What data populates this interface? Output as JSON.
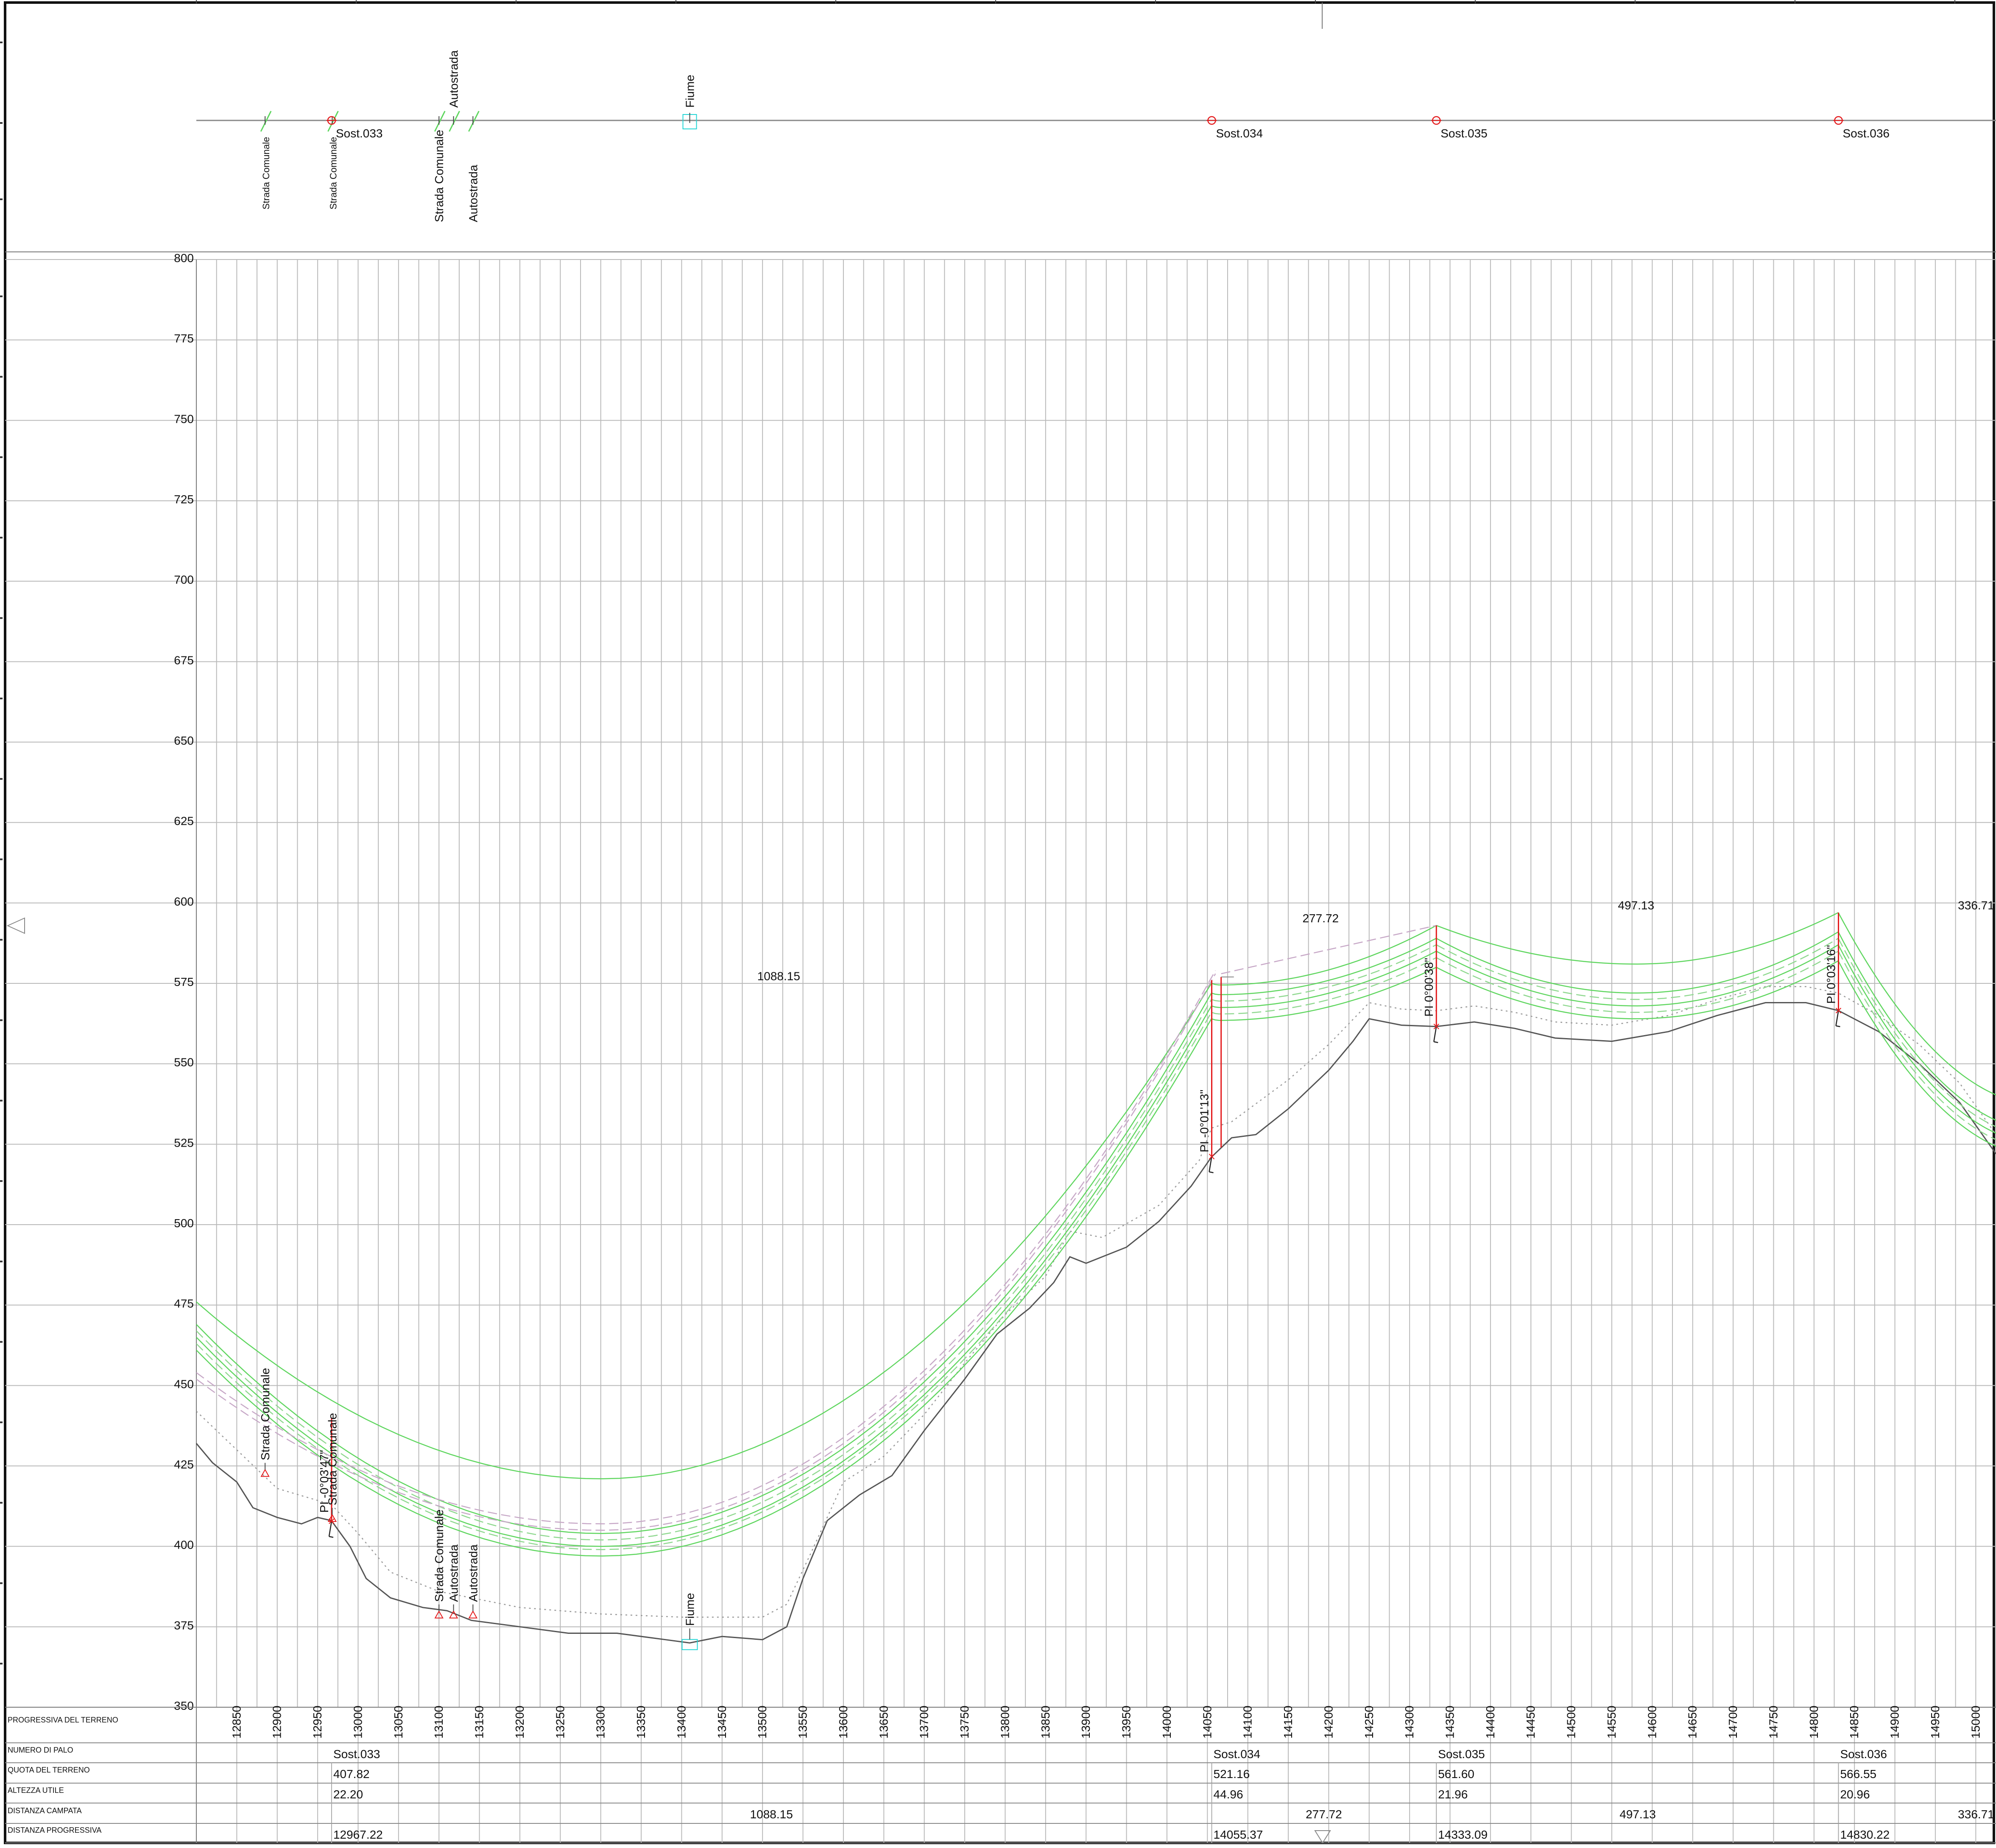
{
  "palette": {
    "grid": "#b9b9b9",
    "frame": "#111111",
    "terrain": "#555555",
    "terrain_offset": "#9a9a9a",
    "conductor": "#5fd65f",
    "conductor_dashed": "#8fd88f",
    "groundwire": "#c7a8c7",
    "pole": "#e41a1c",
    "river": "#22d5d5"
  },
  "plan_view": {
    "crossings": [
      {
        "name": "Strada Comunale",
        "x": 12885
      },
      {
        "name": "Strada Comunale",
        "x": 12968
      },
      {
        "name": "Strada Comunale",
        "x": 13100
      },
      {
        "name": "Autostrada",
        "x": 13118
      },
      {
        "name": "Autostrada",
        "x": 13142
      }
    ],
    "river": {
      "name": "Fiume",
      "x": 13410
    },
    "supports": [
      {
        "name": "Sost.033",
        "x": 12967.22
      },
      {
        "name": "Sost.034",
        "x": 14055.37
      },
      {
        "name": "Sost.035",
        "x": 14333.09
      },
      {
        "name": "Sost.036",
        "x": 14830.22
      }
    ]
  },
  "chart_data": {
    "type": "line",
    "title": "",
    "xlabel": "",
    "ylabel": "",
    "xlim": [
      12800,
      15025
    ],
    "ylim": [
      350,
      800
    ],
    "y_ticks": [
      350,
      375,
      400,
      425,
      450,
      475,
      500,
      525,
      550,
      575,
      600,
      625,
      650,
      675,
      700,
      725,
      750,
      775,
      800
    ],
    "x_ticks": [
      12850,
      12900,
      12950,
      13000,
      13050,
      13100,
      13150,
      13200,
      13250,
      13300,
      13350,
      13400,
      13450,
      13500,
      13550,
      13600,
      13650,
      13700,
      13750,
      13800,
      13850,
      13900,
      13950,
      14000,
      14050,
      14100,
      14150,
      14200,
      14250,
      14300,
      14350,
      14400,
      14450,
      14500,
      14550,
      14600,
      14650,
      14700,
      14750,
      14800,
      14850,
      14900,
      14950,
      15000
    ],
    "terrain": [
      [
        12800,
        432
      ],
      [
        12820,
        426
      ],
      [
        12850,
        420
      ],
      [
        12870,
        412
      ],
      [
        12900,
        409
      ],
      [
        12930,
        407
      ],
      [
        12950,
        409
      ],
      [
        12967,
        408
      ],
      [
        12990,
        400
      ],
      [
        13010,
        390
      ],
      [
        13040,
        384
      ],
      [
        13080,
        381
      ],
      [
        13110,
        380
      ],
      [
        13140,
        377
      ],
      [
        13200,
        375
      ],
      [
        13260,
        373
      ],
      [
        13320,
        373
      ],
      [
        13380,
        371
      ],
      [
        13410,
        370
      ],
      [
        13450,
        372
      ],
      [
        13500,
        371
      ],
      [
        13530,
        375
      ],
      [
        13550,
        390
      ],
      [
        13580,
        408
      ],
      [
        13620,
        416
      ],
      [
        13660,
        422
      ],
      [
        13700,
        436
      ],
      [
        13750,
        452
      ],
      [
        13790,
        466
      ],
      [
        13830,
        474
      ],
      [
        13860,
        482
      ],
      [
        13880,
        490
      ],
      [
        13900,
        488
      ],
      [
        13950,
        493
      ],
      [
        13990,
        501
      ],
      [
        14030,
        512
      ],
      [
        14055,
        521
      ],
      [
        14080,
        527
      ],
      [
        14110,
        528
      ],
      [
        14150,
        536
      ],
      [
        14200,
        548
      ],
      [
        14230,
        557
      ],
      [
        14250,
        564
      ],
      [
        14290,
        562
      ],
      [
        14333,
        561.6
      ],
      [
        14380,
        563
      ],
      [
        14430,
        561
      ],
      [
        14480,
        558
      ],
      [
        14550,
        557
      ],
      [
        14620,
        560
      ],
      [
        14680,
        565
      ],
      [
        14740,
        569
      ],
      [
        14790,
        569
      ],
      [
        14830,
        566.55
      ],
      [
        14880,
        560
      ],
      [
        14930,
        550
      ],
      [
        14980,
        538
      ],
      [
        15025,
        522
      ]
    ],
    "terrain_offset": [
      [
        12800,
        442
      ],
      [
        12850,
        430
      ],
      [
        12900,
        418
      ],
      [
        12967,
        413
      ],
      [
        13000,
        404
      ],
      [
        13040,
        392
      ],
      [
        13100,
        386
      ],
      [
        13200,
        381
      ],
      [
        13300,
        379
      ],
      [
        13400,
        378
      ],
      [
        13500,
        378
      ],
      [
        13530,
        382
      ],
      [
        13560,
        398
      ],
      [
        13600,
        420
      ],
      [
        13650,
        428
      ],
      [
        13700,
        441
      ],
      [
        13750,
        457
      ],
      [
        13800,
        472
      ],
      [
        13850,
        484
      ],
      [
        13880,
        498
      ],
      [
        13920,
        496
      ],
      [
        13990,
        506
      ],
      [
        14040,
        520
      ],
      [
        14055,
        530
      ],
      [
        14080,
        532
      ],
      [
        14150,
        545
      ],
      [
        14200,
        556
      ],
      [
        14250,
        569
      ],
      [
        14290,
        567
      ],
      [
        14333,
        566.5
      ],
      [
        14380,
        568
      ],
      [
        14430,
        566
      ],
      [
        14480,
        563
      ],
      [
        14550,
        562
      ],
      [
        14620,
        565
      ],
      [
        14680,
        570
      ],
      [
        14740,
        574
      ],
      [
        14790,
        574
      ],
      [
        14830,
        572
      ],
      [
        14880,
        565
      ],
      [
        14930,
        556
      ],
      [
        14980,
        544
      ],
      [
        15025,
        528
      ]
    ],
    "spans": [
      {
        "from": 12967.22,
        "to": 14055.37,
        "length": "1088.15",
        "lowpoint": 13300
      },
      {
        "from": 14055.37,
        "to": 14333.09,
        "length": "277.72",
        "lowpoint": 14190
      },
      {
        "from": 14333.09,
        "to": 14830.22,
        "length": "497.13",
        "lowpoint": 14580
      },
      {
        "from": 14830.22,
        "to": 15167.0,
        "length": "336.71",
        "lowpoint": 15000
      }
    ],
    "cables": [
      {
        "style": "solid",
        "points": [
          [
            12800,
            476
          ],
          [
            13300,
            421
          ],
          [
            14055,
            575
          ],
          [
            14333,
            593
          ],
          [
            14580,
            581
          ],
          [
            14830,
            597
          ],
          [
            15025,
            549
          ]
        ],
        "sag": [
          0,
          0,
          0
        ]
      },
      {
        "style": "solid",
        "points": [
          [
            12800,
            469
          ],
          [
            13300,
            404
          ],
          [
            14055,
            572
          ],
          [
            14333,
            589
          ],
          [
            14580,
            572
          ],
          [
            14830,
            591
          ],
          [
            15025,
            541
          ]
        ]
      },
      {
        "style": "dashed",
        "points": [
          [
            12800,
            467
          ],
          [
            13300,
            402
          ],
          [
            14055,
            570
          ],
          [
            14333,
            587
          ],
          [
            14580,
            570
          ],
          [
            14830,
            589
          ],
          [
            15025,
            539
          ]
        ]
      },
      {
        "style": "solid",
        "points": [
          [
            12800,
            465
          ],
          [
            13300,
            400
          ],
          [
            14055,
            568
          ],
          [
            14333,
            585
          ],
          [
            14580,
            568
          ],
          [
            14830,
            587
          ],
          [
            15025,
            537
          ]
        ]
      },
      {
        "style": "dashed",
        "points": [
          [
            12800,
            463
          ],
          [
            13300,
            399
          ],
          [
            14055,
            566
          ],
          [
            14333,
            583
          ],
          [
            14580,
            566
          ],
          [
            14830,
            585
          ],
          [
            15025,
            535
          ]
        ]
      },
      {
        "style": "solid",
        "points": [
          [
            12800,
            461
          ],
          [
            13300,
            397
          ],
          [
            14055,
            564
          ],
          [
            14333,
            580
          ],
          [
            14580,
            564
          ],
          [
            14830,
            582
          ],
          [
            15025,
            533
          ]
        ]
      }
    ],
    "groundwire": [
      [
        12967,
        440
      ],
      [
        13300,
        405
      ],
      [
        14055,
        578
      ]
    ],
    "groundwire2": [
      [
        13300,
        421
      ],
      [
        14055,
        577
      ]
    ],
    "poles": [
      {
        "x": 12967.22,
        "base": 407.82,
        "top": 440,
        "label": "PI -0°03'47\""
      },
      {
        "x": 14055.37,
        "base": 521.16,
        "top": 576,
        "label": "PI -0°01'13\""
      },
      {
        "x": 14333.09,
        "base": 561.6,
        "top": 593,
        "label": "PI 0°00'38\""
      },
      {
        "x": 14830.22,
        "base": 566.55,
        "top": 597,
        "label": "PI 0°03'16\""
      }
    ],
    "pole_second": {
      "x": 14067,
      "base": 524,
      "top": 577
    },
    "profile_crossings": [
      {
        "name": "Strada Comunale",
        "x": 12885,
        "y": 422
      },
      {
        "name": "Strada Comunale",
        "x": 12968,
        "y": 408
      },
      {
        "name": "Strada Comunale",
        "x": 13100,
        "y": 378
      },
      {
        "name": "Autostrada",
        "x": 13118,
        "y": 378
      },
      {
        "name": "Autostrada",
        "x": 13142,
        "y": 378
      }
    ],
    "profile_river": {
      "name": "Fiume",
      "x": 13410,
      "y": 370
    },
    "span_label_positions": [
      {
        "label": "1088.15",
        "x": 13520,
        "y": 576
      },
      {
        "label": "277.72",
        "x": 14190,
        "y": 594
      },
      {
        "label": "497.13",
        "x": 14580,
        "y": 598
      },
      {
        "label": "336.71",
        "x": 15005,
        "y": 598
      }
    ]
  },
  "table": {
    "headers": {
      "progressiva": "PROGRESSIVA DEL TERRENO",
      "palo": "NUMERO DI PALO",
      "quota": "QUOTA DEL TERRENO",
      "altezza": "ALTEZZA UTILE",
      "campata": "DISTANZA CAMPATA",
      "distanza": "DISTANZA PROGRESSIVA"
    },
    "poles": [
      {
        "x": 12967.22,
        "name": "Sost.033",
        "quota": "407.82",
        "altezza": "22.20",
        "progressiva": "12967.22"
      },
      {
        "x": 14055.37,
        "name": "Sost.034",
        "quota": "521.16",
        "altezza": "44.96",
        "progressiva": "14055.37"
      },
      {
        "x": 14333.09,
        "name": "Sost.035",
        "quota": "561.60",
        "altezza": "21.96",
        "progressiva": "14333.09"
      },
      {
        "x": 14830.22,
        "name": "Sost.036",
        "quota": "566.55",
        "altezza": "20.96",
        "progressiva": "14830.22"
      }
    ],
    "campate": [
      {
        "x": 13511,
        "value": "1088.15"
      },
      {
        "x": 14194,
        "value": "277.72"
      },
      {
        "x": 14582,
        "value": "497.13"
      },
      {
        "x": 15005,
        "value": "336.71"
      }
    ]
  }
}
